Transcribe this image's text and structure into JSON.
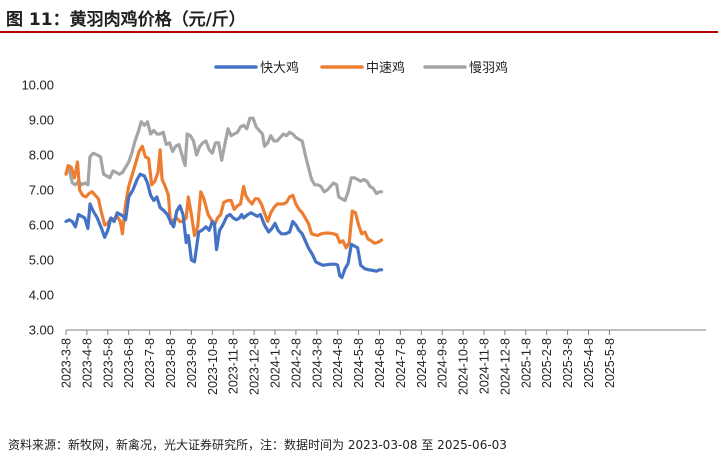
{
  "title": "图 11：黄羽肉鸡价格（元/斤）",
  "source": "资料来源：新牧网，新禽况，光大证券研究所，注：数据时间为 2023-03-08 至 2025-06-03",
  "chart_data": {
    "type": "line",
    "title": "",
    "xlabel": "",
    "ylabel": "",
    "ylim": [
      3.0,
      10.0
    ],
    "yticks": [
      "3.00",
      "4.00",
      "5.00",
      "6.00",
      "7.00",
      "8.00",
      "9.00",
      "10.00"
    ],
    "grid": false,
    "legend_position": "top",
    "x_tick_labels": [
      "2023-3-8",
      "2023-4-8",
      "2023-5-8",
      "2023-6-8",
      "2023-7-8",
      "2023-8-8",
      "2023-9-8",
      "2023-10-8",
      "2023-11-8",
      "2023-12-8",
      "2024-1-8",
      "2024-2-8",
      "2024-3-8",
      "2024-4-8",
      "2024-5-8",
      "2024-6-8",
      "2024-7-8",
      "2024-8-8",
      "2024-9-8",
      "2024-10-8",
      "2024-11-8",
      "2024-12-8",
      "2025-1-8",
      "2025-2-8",
      "2025-3-8",
      "2025-4-8",
      "2025-5-8"
    ],
    "series": [
      {
        "name": "快大鸡",
        "color": "#4472C4",
        "points": [
          [
            0,
            6.1
          ],
          [
            0.15,
            6.15
          ],
          [
            0.3,
            6.1
          ],
          [
            0.45,
            5.95
          ],
          [
            0.6,
            6.3
          ],
          [
            0.75,
            6.25
          ],
          [
            0.9,
            6.2
          ],
          [
            1.05,
            5.9
          ],
          [
            1.15,
            6.6
          ],
          [
            1.3,
            6.4
          ],
          [
            1.5,
            6.2
          ],
          [
            1.7,
            5.9
          ],
          [
            1.85,
            5.65
          ],
          [
            2.0,
            5.85
          ],
          [
            2.15,
            6.2
          ],
          [
            2.3,
            6.1
          ],
          [
            2.45,
            6.35
          ],
          [
            2.6,
            6.3
          ],
          [
            2.75,
            6.25
          ],
          [
            2.85,
            6.15
          ],
          [
            3.0,
            6.8
          ],
          [
            3.2,
            7.0
          ],
          [
            3.4,
            7.3
          ],
          [
            3.55,
            7.45
          ],
          [
            3.75,
            7.4
          ],
          [
            3.9,
            7.2
          ],
          [
            4.05,
            6.85
          ],
          [
            4.2,
            6.7
          ],
          [
            4.35,
            6.8
          ],
          [
            4.5,
            6.5
          ],
          [
            4.7,
            6.4
          ],
          [
            4.85,
            6.3
          ],
          [
            5.0,
            6.1
          ],
          [
            5.15,
            5.95
          ],
          [
            5.3,
            6.4
          ],
          [
            5.45,
            6.55
          ],
          [
            5.6,
            6.3
          ],
          [
            5.75,
            5.5
          ],
          [
            5.85,
            5.7
          ],
          [
            6.0,
            5.0
          ],
          [
            6.15,
            4.95
          ],
          [
            6.35,
            5.8
          ],
          [
            6.5,
            5.85
          ],
          [
            6.7,
            5.95
          ],
          [
            6.85,
            5.85
          ],
          [
            7.0,
            6.1
          ],
          [
            7.1,
            6.05
          ],
          [
            7.2,
            5.3
          ],
          [
            7.35,
            5.85
          ],
          [
            7.5,
            6.0
          ],
          [
            7.7,
            6.25
          ],
          [
            7.85,
            6.3
          ],
          [
            8.0,
            6.2
          ],
          [
            8.15,
            6.15
          ],
          [
            8.3,
            6.2
          ],
          [
            8.4,
            6.3
          ],
          [
            8.5,
            6.2
          ],
          [
            8.7,
            6.3
          ],
          [
            8.85,
            6.35
          ],
          [
            9.0,
            6.3
          ],
          [
            9.15,
            6.25
          ],
          [
            9.3,
            6.3
          ],
          [
            9.5,
            6.0
          ],
          [
            9.7,
            5.8
          ],
          [
            9.85,
            5.9
          ],
          [
            10.0,
            6.05
          ],
          [
            10.15,
            5.85
          ],
          [
            10.3,
            5.75
          ],
          [
            10.5,
            5.75
          ],
          [
            10.7,
            5.8
          ],
          [
            10.85,
            6.1
          ],
          [
            11.0,
            6.0
          ],
          [
            11.15,
            5.85
          ],
          [
            11.3,
            5.75
          ],
          [
            11.45,
            5.55
          ],
          [
            11.6,
            5.35
          ],
          [
            11.8,
            5.15
          ],
          [
            11.95,
            4.95
          ],
          [
            12.1,
            4.9
          ],
          [
            12.3,
            4.85
          ],
          [
            12.5,
            4.87
          ],
          [
            12.7,
            4.88
          ],
          [
            12.9,
            4.88
          ],
          [
            13.0,
            4.85
          ],
          [
            13.1,
            4.55
          ],
          [
            13.2,
            4.5
          ],
          [
            13.35,
            4.75
          ],
          [
            13.5,
            4.9
          ],
          [
            13.65,
            5.45
          ],
          [
            13.8,
            5.4
          ],
          [
            13.95,
            5.35
          ],
          [
            14.1,
            4.85
          ],
          [
            14.3,
            4.75
          ],
          [
            14.5,
            4.72
          ],
          [
            14.7,
            4.7
          ],
          [
            14.85,
            4.68
          ],
          [
            15.0,
            4.72
          ],
          [
            15.1,
            4.72
          ]
        ]
      },
      {
        "name": "中速鸡",
        "color": "#ED7D31",
        "points": [
          [
            0,
            7.45
          ],
          [
            0.1,
            7.7
          ],
          [
            0.25,
            7.65
          ],
          [
            0.4,
            7.35
          ],
          [
            0.55,
            7.8
          ],
          [
            0.65,
            7.0
          ],
          [
            0.8,
            6.85
          ],
          [
            0.95,
            6.8
          ],
          [
            1.1,
            6.9
          ],
          [
            1.25,
            6.95
          ],
          [
            1.4,
            6.85
          ],
          [
            1.55,
            6.75
          ],
          [
            1.7,
            6.35
          ],
          [
            1.85,
            6.0
          ],
          [
            2.0,
            6.05
          ],
          [
            2.15,
            6.2
          ],
          [
            2.3,
            6.15
          ],
          [
            2.45,
            6.25
          ],
          [
            2.6,
            6.1
          ],
          [
            2.7,
            5.75
          ],
          [
            2.85,
            6.6
          ],
          [
            3.0,
            7.1
          ],
          [
            3.2,
            7.5
          ],
          [
            3.35,
            7.8
          ],
          [
            3.5,
            8.1
          ],
          [
            3.65,
            8.25
          ],
          [
            3.8,
            7.95
          ],
          [
            3.95,
            7.9
          ],
          [
            4.1,
            7.15
          ],
          [
            4.25,
            7.25
          ],
          [
            4.4,
            7.5
          ],
          [
            4.5,
            8.15
          ],
          [
            4.6,
            7.3
          ],
          [
            4.75,
            7.1
          ],
          [
            4.9,
            6.85
          ],
          [
            5.0,
            6.05
          ],
          [
            5.15,
            6.15
          ],
          [
            5.3,
            6.2
          ],
          [
            5.45,
            6.1
          ],
          [
            5.6,
            6.1
          ],
          [
            5.75,
            6.2
          ],
          [
            5.85,
            6.8
          ],
          [
            6.0,
            6.3
          ],
          [
            6.15,
            5.7
          ],
          [
            6.3,
            5.95
          ],
          [
            6.45,
            6.95
          ],
          [
            6.6,
            6.75
          ],
          [
            6.8,
            6.3
          ],
          [
            6.95,
            6.15
          ],
          [
            7.1,
            6.0
          ],
          [
            7.25,
            6.2
          ],
          [
            7.4,
            6.3
          ],
          [
            7.55,
            6.65
          ],
          [
            7.75,
            6.7
          ],
          [
            7.9,
            6.7
          ],
          [
            8.05,
            6.45
          ],
          [
            8.2,
            6.55
          ],
          [
            8.35,
            6.6
          ],
          [
            8.5,
            7.1
          ],
          [
            8.6,
            6.85
          ],
          [
            8.75,
            6.7
          ],
          [
            8.9,
            6.6
          ],
          [
            9.05,
            6.75
          ],
          [
            9.2,
            6.75
          ],
          [
            9.35,
            6.6
          ],
          [
            9.5,
            6.35
          ],
          [
            9.65,
            6.1
          ],
          [
            9.8,
            6.35
          ],
          [
            9.95,
            6.5
          ],
          [
            10.1,
            6.6
          ],
          [
            10.25,
            6.6
          ],
          [
            10.4,
            6.6
          ],
          [
            10.55,
            6.65
          ],
          [
            10.7,
            6.8
          ],
          [
            10.85,
            6.85
          ],
          [
            11.0,
            6.6
          ],
          [
            11.15,
            6.45
          ],
          [
            11.3,
            6.35
          ],
          [
            11.45,
            6.2
          ],
          [
            11.6,
            6.05
          ],
          [
            11.75,
            5.75
          ],
          [
            11.9,
            5.72
          ],
          [
            12.05,
            5.7
          ],
          [
            12.2,
            5.75
          ],
          [
            12.4,
            5.77
          ],
          [
            12.6,
            5.77
          ],
          [
            12.8,
            5.75
          ],
          [
            12.95,
            5.72
          ],
          [
            13.1,
            5.5
          ],
          [
            13.25,
            5.55
          ],
          [
            13.4,
            5.35
          ],
          [
            13.55,
            5.5
          ],
          [
            13.7,
            6.4
          ],
          [
            13.85,
            6.35
          ],
          [
            14.0,
            6.0
          ],
          [
            14.15,
            5.75
          ],
          [
            14.3,
            5.8
          ],
          [
            14.45,
            5.6
          ],
          [
            14.6,
            5.55
          ],
          [
            14.75,
            5.48
          ],
          [
            14.9,
            5.5
          ],
          [
            15.05,
            5.55
          ],
          [
            15.1,
            5.57
          ]
        ]
      },
      {
        "name": "慢羽鸡",
        "color": "#A5A5A5",
        "points": [
          [
            0,
            7.5
          ],
          [
            0.15,
            7.6
          ],
          [
            0.3,
            7.2
          ],
          [
            0.45,
            7.15
          ],
          [
            0.6,
            7.25
          ],
          [
            0.75,
            7.15
          ],
          [
            0.9,
            7.2
          ],
          [
            1.05,
            7.15
          ],
          [
            1.15,
            7.95
          ],
          [
            1.3,
            8.05
          ],
          [
            1.5,
            8.0
          ],
          [
            1.65,
            7.95
          ],
          [
            1.8,
            7.45
          ],
          [
            1.95,
            7.4
          ],
          [
            2.1,
            7.35
          ],
          [
            2.25,
            7.55
          ],
          [
            2.4,
            7.5
          ],
          [
            2.55,
            7.45
          ],
          [
            2.7,
            7.5
          ],
          [
            2.85,
            7.65
          ],
          [
            3.0,
            7.8
          ],
          [
            3.15,
            8.05
          ],
          [
            3.3,
            8.4
          ],
          [
            3.45,
            8.65
          ],
          [
            3.6,
            8.95
          ],
          [
            3.75,
            8.85
          ],
          [
            3.9,
            8.95
          ],
          [
            4.05,
            8.6
          ],
          [
            4.2,
            8.7
          ],
          [
            4.35,
            8.6
          ],
          [
            4.5,
            8.6
          ],
          [
            4.65,
            8.65
          ],
          [
            4.8,
            8.3
          ],
          [
            4.95,
            8.35
          ],
          [
            5.1,
            8.1
          ],
          [
            5.25,
            8.25
          ],
          [
            5.4,
            8.3
          ],
          [
            5.55,
            8.0
          ],
          [
            5.7,
            7.7
          ],
          [
            5.8,
            8.6
          ],
          [
            5.95,
            8.55
          ],
          [
            6.1,
            8.4
          ],
          [
            6.25,
            8.0
          ],
          [
            6.4,
            8.25
          ],
          [
            6.55,
            8.35
          ],
          [
            6.7,
            8.4
          ],
          [
            6.85,
            8.15
          ],
          [
            7.0,
            8.05
          ],
          [
            7.15,
            8.35
          ],
          [
            7.3,
            8.35
          ],
          [
            7.45,
            7.85
          ],
          [
            7.6,
            8.3
          ],
          [
            7.75,
            8.75
          ],
          [
            7.9,
            8.55
          ],
          [
            8.05,
            8.6
          ],
          [
            8.2,
            8.65
          ],
          [
            8.35,
            8.8
          ],
          [
            8.5,
            8.85
          ],
          [
            8.65,
            8.75
          ],
          [
            8.8,
            9.05
          ],
          [
            8.95,
            9.05
          ],
          [
            9.1,
            8.8
          ],
          [
            9.25,
            8.7
          ],
          [
            9.4,
            8.6
          ],
          [
            9.5,
            8.25
          ],
          [
            9.65,
            8.35
          ],
          [
            9.8,
            8.55
          ],
          [
            9.95,
            8.4
          ],
          [
            10.1,
            8.4
          ],
          [
            10.25,
            8.5
          ],
          [
            10.4,
            8.6
          ],
          [
            10.55,
            8.55
          ],
          [
            10.7,
            8.65
          ],
          [
            10.85,
            8.6
          ],
          [
            11.0,
            8.5
          ],
          [
            11.15,
            8.45
          ],
          [
            11.3,
            8.4
          ],
          [
            11.45,
            8.0
          ],
          [
            11.6,
            7.65
          ],
          [
            11.75,
            7.3
          ],
          [
            11.9,
            7.15
          ],
          [
            12.05,
            7.15
          ],
          [
            12.2,
            7.1
          ],
          [
            12.35,
            6.95
          ],
          [
            12.5,
            7.0
          ],
          [
            12.65,
            7.1
          ],
          [
            12.8,
            7.2
          ],
          [
            12.95,
            7.15
          ],
          [
            13.05,
            6.8
          ],
          [
            13.2,
            6.75
          ],
          [
            13.35,
            6.7
          ],
          [
            13.5,
            6.95
          ],
          [
            13.65,
            7.35
          ],
          [
            13.8,
            7.35
          ],
          [
            13.95,
            7.3
          ],
          [
            14.1,
            7.25
          ],
          [
            14.25,
            7.3
          ],
          [
            14.4,
            7.25
          ],
          [
            14.55,
            7.1
          ],
          [
            14.7,
            7.05
          ],
          [
            14.85,
            6.9
          ],
          [
            15.0,
            6.95
          ],
          [
            15.1,
            6.95
          ]
        ]
      }
    ]
  }
}
